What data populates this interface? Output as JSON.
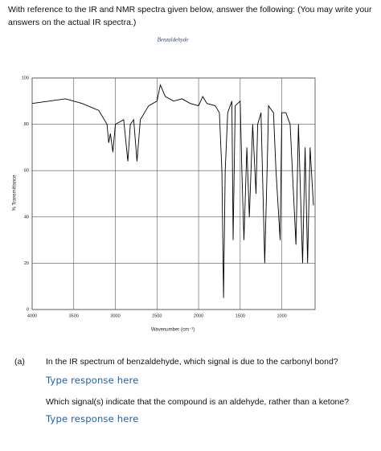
{
  "intro": "With reference to the IR and NMR spectra given below, answer the following: (You may write your answers on the actual IR spectra.)",
  "chart_data": {
    "type": "line",
    "title": "Benzaldehyde",
    "x_label": "Wavenumber (cm⁻¹)",
    "y_label": "% Transmittance",
    "x": [
      4000,
      3800,
      3600,
      3400,
      3200,
      3100,
      3080,
      3060,
      3030,
      3000,
      2900,
      2850,
      2820,
      2780,
      2740,
      2700,
      2600,
      2500,
      2460,
      2400,
      2300,
      2200,
      2100,
      2000,
      1950,
      1900,
      1800,
      1750,
      1720,
      1700,
      1680,
      1650,
      1600,
      1585,
      1560,
      1500,
      1480,
      1455,
      1420,
      1390,
      1350,
      1310,
      1290,
      1250,
      1205,
      1170,
      1160,
      1100,
      1070,
      1020,
      1000,
      950,
      900,
      830,
      800,
      750,
      720,
      690,
      660,
      620
    ],
    "values": [
      89,
      90,
      91,
      89,
      86,
      80,
      72,
      76,
      68,
      80,
      82,
      64,
      80,
      82,
      64,
      82,
      88,
      90,
      97,
      92,
      90,
      91,
      89,
      88,
      92,
      89,
      88,
      85,
      60,
      5,
      60,
      85,
      90,
      30,
      88,
      90,
      60,
      30,
      70,
      40,
      80,
      50,
      80,
      85,
      20,
      70,
      88,
      85,
      60,
      30,
      85,
      85,
      80,
      28,
      80,
      20,
      70,
      20,
      70,
      45
    ],
    "color": "#000000",
    "xlim": [
      4000,
      600
    ],
    "xticks": [
      4000,
      3500,
      3000,
      2500,
      2000,
      1500,
      1000
    ],
    "ylim": [
      0,
      100
    ],
    "yticks": [
      0,
      20,
      40,
      60,
      80,
      100
    ],
    "grid": true
  },
  "questions": {
    "label": "(a)",
    "items": [
      {
        "text": "In the IR spectrum of benzaldehyde, which signal is due to the carbonyl bond?",
        "response": "Type response here"
      },
      {
        "text": "Which signal(s) indicate that the compound is an aldehyde, rather than a ketone?",
        "response": "Type response here"
      }
    ]
  }
}
